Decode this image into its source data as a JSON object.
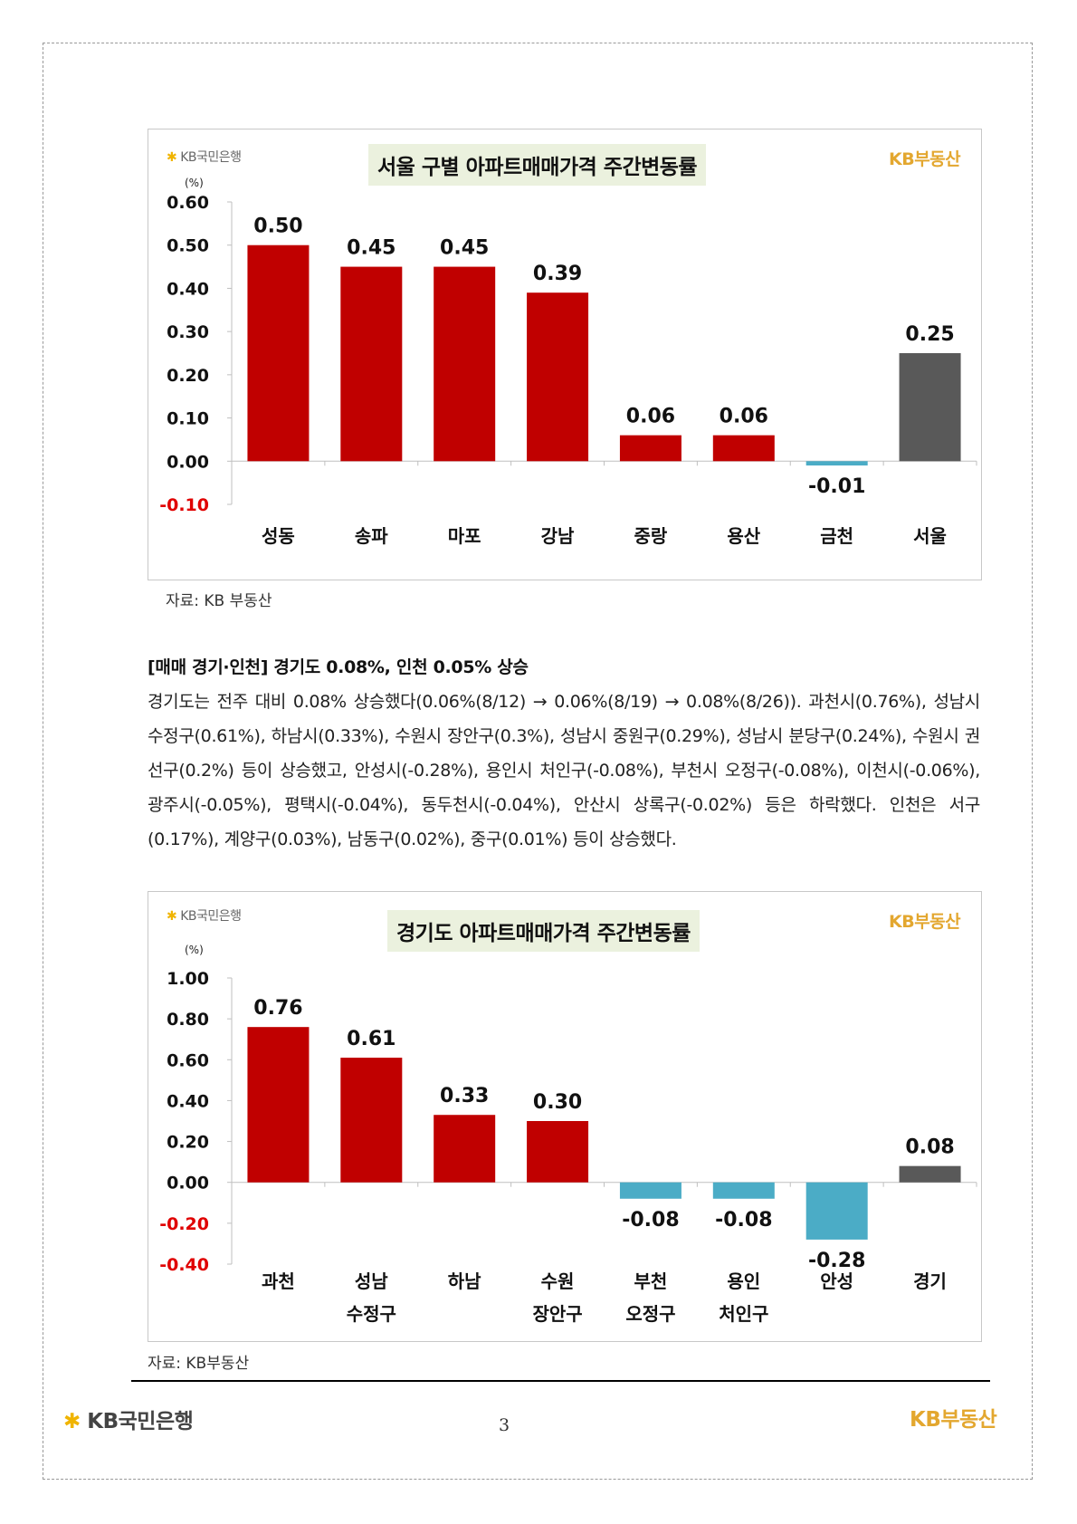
{
  "colors": {
    "positive_bar": "#c00000",
    "negative_bar": "#4bacc6",
    "total_bar": "#595959",
    "negative_tick": "#e00000",
    "title_bg": "#ebf1de",
    "kb_gold": "#e3a72f"
  },
  "logos": {
    "kb_bank": "KB국민은행",
    "kb_budongsan": "KB부동산"
  },
  "charts": [
    {
      "title": "서울 구별 아파트매매가격 주간변동률",
      "unit": "(%)",
      "source": "자료: KB 부동산",
      "chart_data": {
        "type": "bar",
        "categories": [
          "성동",
          "송파",
          "마포",
          "강남",
          "중랑",
          "용산",
          "금천",
          "서울"
        ],
        "values": [
          0.5,
          0.45,
          0.45,
          0.39,
          0.06,
          0.06,
          -0.01,
          0.25
        ],
        "value_labels": [
          "0.50",
          "0.45",
          "0.45",
          "0.39",
          "0.06",
          "0.06",
          "-0.01",
          "0.25"
        ],
        "ylim": [
          -0.1,
          0.6
        ],
        "ytick_labels": [
          "0.60",
          "0.50",
          "0.40",
          "0.30",
          "0.20",
          "0.10",
          "0.00",
          "-0.10"
        ],
        "yticks": [
          0.6,
          0.5,
          0.4,
          0.3,
          0.2,
          0.1,
          0.0,
          -0.1
        ],
        "total_category": "서울",
        "grid": false,
        "legend": "none"
      }
    },
    {
      "title": "경기도 아파트매매가격 주간변동률",
      "unit": "(%)",
      "source": "자료: KB부동산",
      "chart_data": {
        "type": "bar",
        "categories": [
          "과천",
          "성남\n수정구",
          "하남",
          "수원\n장안구",
          "부천\n오정구",
          "용인\n처인구",
          "안성",
          "경기"
        ],
        "values": [
          0.76,
          0.61,
          0.33,
          0.3,
          -0.08,
          -0.08,
          -0.28,
          0.08
        ],
        "value_labels": [
          "0.76",
          "0.61",
          "0.33",
          "0.30",
          "-0.08",
          "-0.08",
          "-0.28",
          "0.08"
        ],
        "ylim": [
          -0.4,
          1.0
        ],
        "ytick_labels": [
          "1.00",
          "0.80",
          "0.60",
          "0.40",
          "0.20",
          "0.00",
          "-0.20",
          "-0.40"
        ],
        "yticks": [
          1.0,
          0.8,
          0.6,
          0.4,
          0.2,
          0.0,
          -0.2,
          -0.4
        ],
        "total_category": "경기",
        "grid": false,
        "legend": "none"
      }
    }
  ],
  "section": {
    "heading": "[매매 경기·인천] 경기도 0.08%, 인천 0.05% 상승",
    "paragraph": "경기도는 전주 대비 0.08% 상승했다(0.06%(8/12) → 0.06%(8/19) → 0.08%(8/26)). 과천시(0.76%), 성남시 수정구(0.61%), 하남시(0.33%), 수원시 장안구(0.3%), 성남시 중원구(0.29%), 성남시 분당구(0.24%), 수원시 권선구(0.2%) 등이 상승했고, 안성시(-0.28%), 용인시 처인구(-0.08%), 부천시 오정구(-0.08%), 이천시(-0.06%), 광주시(-0.05%), 평택시(-0.04%), 동두천시(-0.04%), 안산시 상록구(-0.02%) 등은 하락했다. 인천은 서구(0.17%), 계양구(0.03%), 남동구(0.02%), 중구(0.01%) 등이 상승했다."
  },
  "footer": {
    "left_logo": "KB국민은행",
    "right_logo": "KB부동산",
    "page_number": "3"
  }
}
